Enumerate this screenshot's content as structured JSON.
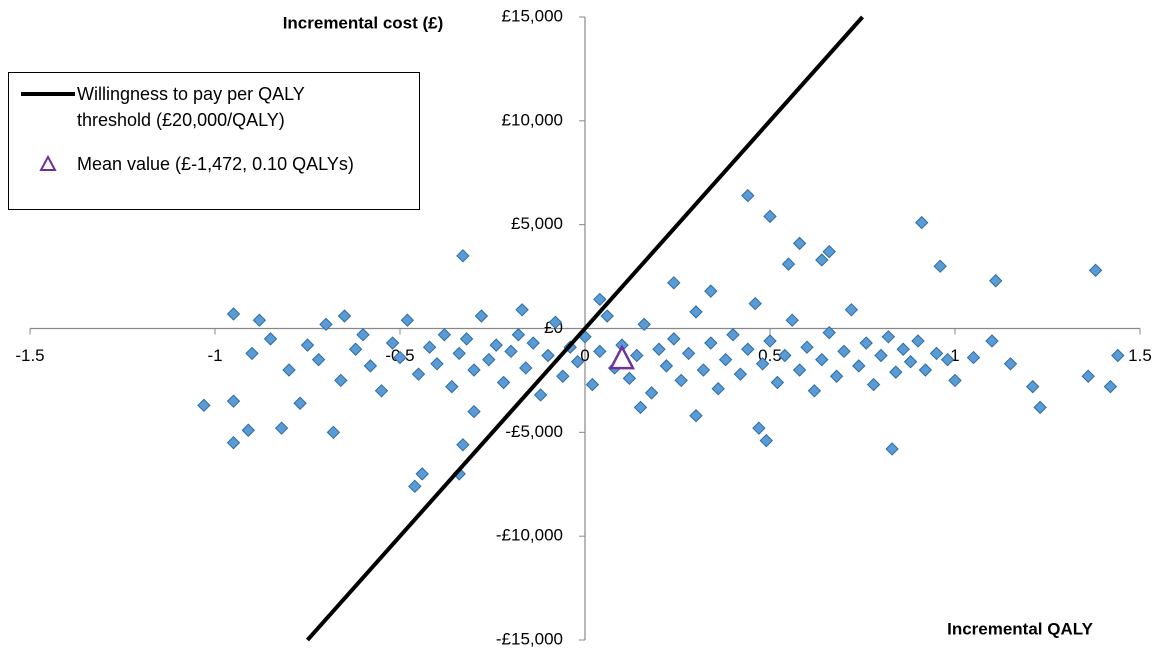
{
  "chart_data": {
    "type": "scatter",
    "x_label": "Incremental QALY",
    "y_label": "Incremental cost (£)",
    "xlim": [
      -1.5,
      1.5
    ],
    "ylim": [
      -15000,
      15000
    ],
    "xticks": [
      -1.5,
      -1,
      -0.5,
      0,
      0.5,
      1,
      1.5
    ],
    "yticks": [
      {
        "value": -15000,
        "label": "-£15,000"
      },
      {
        "value": -10000,
        "label": "-£10,000"
      },
      {
        "value": -5000,
        "label": "-£5,000"
      },
      {
        "value": 0,
        "label": "£0"
      },
      {
        "value": 5000,
        "label": "£5,000"
      },
      {
        "value": 10000,
        "label": "£10,000"
      },
      {
        "value": 15000,
        "label": "£15,000"
      }
    ],
    "series": [
      {
        "type": "scatter",
        "color": "#5b9bd5",
        "x": [
          0.44,
          0.5,
          0.58,
          0.91,
          0.96,
          1.38,
          -0.33,
          1.11,
          0.64,
          0.66,
          0.55,
          -0.95,
          -0.88,
          -1.03,
          -0.95,
          -0.95,
          -0.91,
          -0.82,
          -0.46,
          -0.44,
          -0.34,
          -0.33,
          0.49,
          0.83,
          0.47,
          1.23,
          1.44,
          1.42,
          1.21,
          1.36,
          0.24,
          0.34,
          -0.17,
          0.04,
          -0.77,
          -0.68,
          -0.9,
          -0.85,
          -0.8,
          -0.75,
          -0.72,
          -0.7,
          -0.66,
          -0.62,
          -0.6,
          -0.58,
          -0.55,
          -0.52,
          -0.5,
          -0.48,
          -0.45,
          -0.42,
          -0.4,
          -0.38,
          -0.36,
          -0.34,
          -0.32,
          -0.3,
          -0.28,
          -0.26,
          -0.24,
          -0.22,
          -0.2,
          -0.18,
          -0.16,
          -0.14,
          -0.12,
          -0.1,
          -0.08,
          -0.06,
          -0.04,
          -0.02,
          0,
          0.02,
          0.04,
          0.06,
          0.08,
          0.1,
          0.12,
          0.14,
          0.16,
          0.18,
          0.2,
          0.22,
          0.24,
          0.26,
          0.28,
          0.3,
          0.32,
          0.34,
          0.36,
          0.38,
          0.4,
          0.42,
          0.44,
          0.46,
          0.48,
          0.5,
          0.52,
          0.54,
          0.56,
          0.58,
          0.6,
          0.62,
          0.64,
          0.66,
          0.68,
          0.7,
          0.72,
          0.74,
          0.76,
          0.78,
          0.8,
          0.82,
          0.84,
          0.86,
          0.88,
          0.9,
          0.92,
          0.95,
          0.98,
          1,
          1.05,
          1.1,
          1.15,
          -0.65,
          -0.3,
          0.3,
          0.15
        ],
        "values": [
          6400,
          5400,
          4100,
          5100,
          3000,
          2800,
          3500,
          2300,
          3300,
          3700,
          3100,
          700,
          400,
          -3700,
          -3500,
          -5500,
          -4900,
          -4800,
          -7600,
          -7000,
          -7000,
          -5600,
          -5400,
          -5800,
          -4800,
          -3800,
          -1300,
          -2800,
          -2800,
          -2300,
          2200,
          1800,
          900,
          1400,
          -3600,
          -5000,
          -1200,
          -500,
          -2000,
          -800,
          -1500,
          200,
          -2500,
          -1000,
          -300,
          -1800,
          -3000,
          -700,
          -1400,
          400,
          -2200,
          -900,
          -1700,
          -300,
          -2800,
          -1200,
          -500,
          -2000,
          600,
          -1500,
          -800,
          -2600,
          -1100,
          -300,
          -1900,
          -700,
          -3200,
          -1300,
          300,
          -2300,
          -900,
          -1600,
          -400,
          -2700,
          -1100,
          600,
          -1900,
          -800,
          -2400,
          -1300,
          200,
          -3100,
          -1000,
          -1800,
          -500,
          -2500,
          -1200,
          800,
          -2000,
          -700,
          -2900,
          -1500,
          -300,
          -2200,
          -1000,
          1200,
          -1700,
          -600,
          -2600,
          -1300,
          400,
          -2000,
          -900,
          -3000,
          -1500,
          -200,
          -2300,
          -1100,
          900,
          -1800,
          -700,
          -2700,
          -1300,
          -400,
          -2100,
          -1000,
          -1600,
          -600,
          -2000,
          -1200,
          -1500,
          -2500,
          -1400,
          -600,
          -1700,
          600,
          -4000,
          -4200,
          -3800
        ]
      },
      {
        "type": "line",
        "name": "Willingness to pay per QALY threshold (£20,000/QALY)",
        "color": "#000000",
        "x": [
          -0.75,
          0.75
        ],
        "values": [
          -15000,
          15000
        ]
      },
      {
        "type": "triangle",
        "name": "Mean value (£-1,472, 0.10 QALYs)",
        "color": "#7030a0",
        "x": [
          0.1
        ],
        "values": [
          -1472
        ]
      }
    ]
  }
}
